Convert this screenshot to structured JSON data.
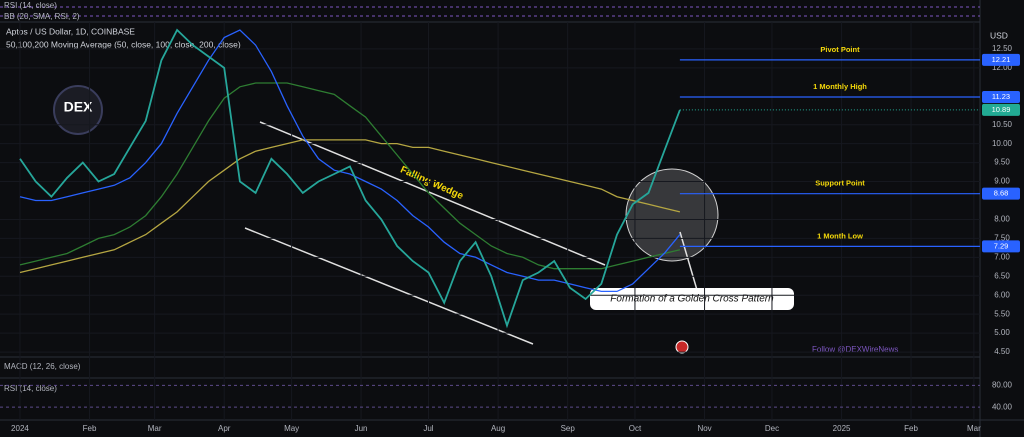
{
  "chart_data": {
    "type": "line",
    "title": "Aptos / US Dollar, 1D, COINBASE",
    "subtitle": "50,100,200 Moving Average (50, close, 100, close, 200, close)",
    "currency": "USD",
    "logo": "DEX",
    "indicators": {
      "top": [
        "RSI (14, close)",
        "BB (20, SMA, RSI, 2)"
      ],
      "macd": "MACD (12, 26, close)",
      "rsi": "RSI (14, close)",
      "rsi_ticks": [
        {
          "value": 80,
          "label": "80.00"
        },
        {
          "value": 40,
          "label": "40.00"
        }
      ]
    },
    "annotations": {
      "wedge": "Falling Wedge",
      "cross": "Formation of a Golden Cross Pattern",
      "follow": "Follow @DEXWireNews"
    },
    "x": [
      0,
      1,
      2,
      3,
      4,
      5,
      6,
      7,
      8,
      9,
      10,
      11,
      12,
      13,
      14,
      15,
      16,
      17,
      18,
      19,
      20,
      21,
      22,
      23,
      24,
      25,
      26,
      27,
      28,
      29,
      30,
      31,
      32,
      33,
      34,
      35,
      36,
      37,
      38,
      39,
      40,
      41,
      42
    ],
    "xlim": [
      -1.27,
      61.1
    ],
    "xticks": [
      {
        "value": 0,
        "label": "2024"
      },
      {
        "value": 4.43,
        "label": "Feb"
      },
      {
        "value": 8.57,
        "label": "Mar"
      },
      {
        "value": 13,
        "label": "Apr"
      },
      {
        "value": 17.29,
        "label": "May"
      },
      {
        "value": 21.71,
        "label": "Jun"
      },
      {
        "value": 26,
        "label": "Jul"
      },
      {
        "value": 30.43,
        "label": "Aug"
      },
      {
        "value": 34.86,
        "label": "Sep"
      },
      {
        "value": 39.14,
        "label": "Oct"
      },
      {
        "value": 43.57,
        "label": "Nov"
      },
      {
        "value": 47.86,
        "label": "Dec"
      },
      {
        "value": 52.29,
        "label": "2025"
      },
      {
        "value": 56.71,
        "label": "Feb"
      },
      {
        "value": 60.71,
        "label": "Mar"
      }
    ],
    "ylim": [
      4.37,
      13.21
    ],
    "yticks": [
      {
        "value": 4.5,
        "label": "4.50"
      },
      {
        "value": 5,
        "label": "5.00"
      },
      {
        "value": 5.5,
        "label": "5.50"
      },
      {
        "value": 6,
        "label": "6.00"
      },
      {
        "value": 6.5,
        "label": "6.50"
      },
      {
        "value": 7,
        "label": "7.00"
      },
      {
        "value": 7.5,
        "label": "7.50"
      },
      {
        "value": 8,
        "label": "8.00"
      },
      {
        "value": 9,
        "label": "9.00"
      },
      {
        "value": 9.5,
        "label": "9.50"
      },
      {
        "value": 10,
        "label": "10.00"
      },
      {
        "value": 10.5,
        "label": "10.50"
      },
      {
        "value": 12,
        "label": "12.00"
      },
      {
        "value": 12.5,
        "label": "12.50"
      }
    ],
    "series": [
      {
        "name": "Price",
        "color": "#26a69a",
        "values": [
          9.6,
          9.0,
          8.6,
          9.1,
          9.5,
          9.0,
          9.2,
          9.9,
          10.6,
          12.2,
          13.0,
          12.6,
          12.3,
          12.0,
          9.0,
          8.7,
          9.6,
          9.2,
          8.7,
          9.0,
          9.2,
          9.4,
          8.5,
          8.0,
          7.3,
          6.9,
          6.6,
          5.8,
          6.9,
          7.4,
          6.5,
          5.2,
          6.4,
          6.6,
          6.9,
          6.2,
          5.9,
          6.3,
          7.6,
          8.4,
          8.7,
          9.8,
          10.89
        ]
      },
      {
        "name": "MA 50",
        "color": "#2962ff",
        "values": [
          8.6,
          8.5,
          8.5,
          8.6,
          8.7,
          8.8,
          8.9,
          9.1,
          9.5,
          10.0,
          10.8,
          11.5,
          12.2,
          12.8,
          13.0,
          12.6,
          11.9,
          11.0,
          10.2,
          9.6,
          9.3,
          9.2,
          9.0,
          8.8,
          8.5,
          8.1,
          7.8,
          7.4,
          7.1,
          7.0,
          6.8,
          6.6,
          6.5,
          6.4,
          6.4,
          6.3,
          6.2,
          6.1,
          6.1,
          6.3,
          6.7,
          7.1,
          7.6
        ]
      },
      {
        "name": "MA 100",
        "color": "#2e7d32",
        "values": [
          6.8,
          6.9,
          7.0,
          7.1,
          7.3,
          7.5,
          7.6,
          7.8,
          8.1,
          8.6,
          9.2,
          9.9,
          10.6,
          11.2,
          11.5,
          11.6,
          11.6,
          11.6,
          11.5,
          11.4,
          11.3,
          11.0,
          10.7,
          10.2,
          9.7,
          9.2,
          8.7,
          8.3,
          7.9,
          7.6,
          7.3,
          7.1,
          7.0,
          6.8,
          6.7,
          6.7,
          6.7,
          6.7,
          6.8,
          6.9,
          7.0,
          7.1,
          7.2
        ]
      },
      {
        "name": "MA 200",
        "color": "#b5a642",
        "values": [
          6.6,
          6.7,
          6.8,
          6.9,
          7.0,
          7.1,
          7.2,
          7.4,
          7.6,
          7.9,
          8.2,
          8.6,
          9.0,
          9.3,
          9.6,
          9.8,
          9.9,
          10.0,
          10.1,
          10.1,
          10.1,
          10.1,
          10.1,
          10.0,
          10.0,
          9.9,
          9.9,
          9.8,
          9.7,
          9.6,
          9.5,
          9.4,
          9.3,
          9.2,
          9.1,
          9.0,
          8.9,
          8.8,
          8.6,
          8.5,
          8.4,
          8.3,
          8.2
        ]
      }
    ],
    "levels": [
      {
        "name": "Pivot Point",
        "value": 12.21
      },
      {
        "name": "1 Monthly High",
        "value": 11.23
      },
      {
        "name": "Support Point",
        "value": 8.68
      },
      {
        "name": "1 Month Low",
        "value": 7.29
      }
    ],
    "last_price": 10.89,
    "last_color": "#22ab94",
    "level_color": "#2962ff"
  }
}
